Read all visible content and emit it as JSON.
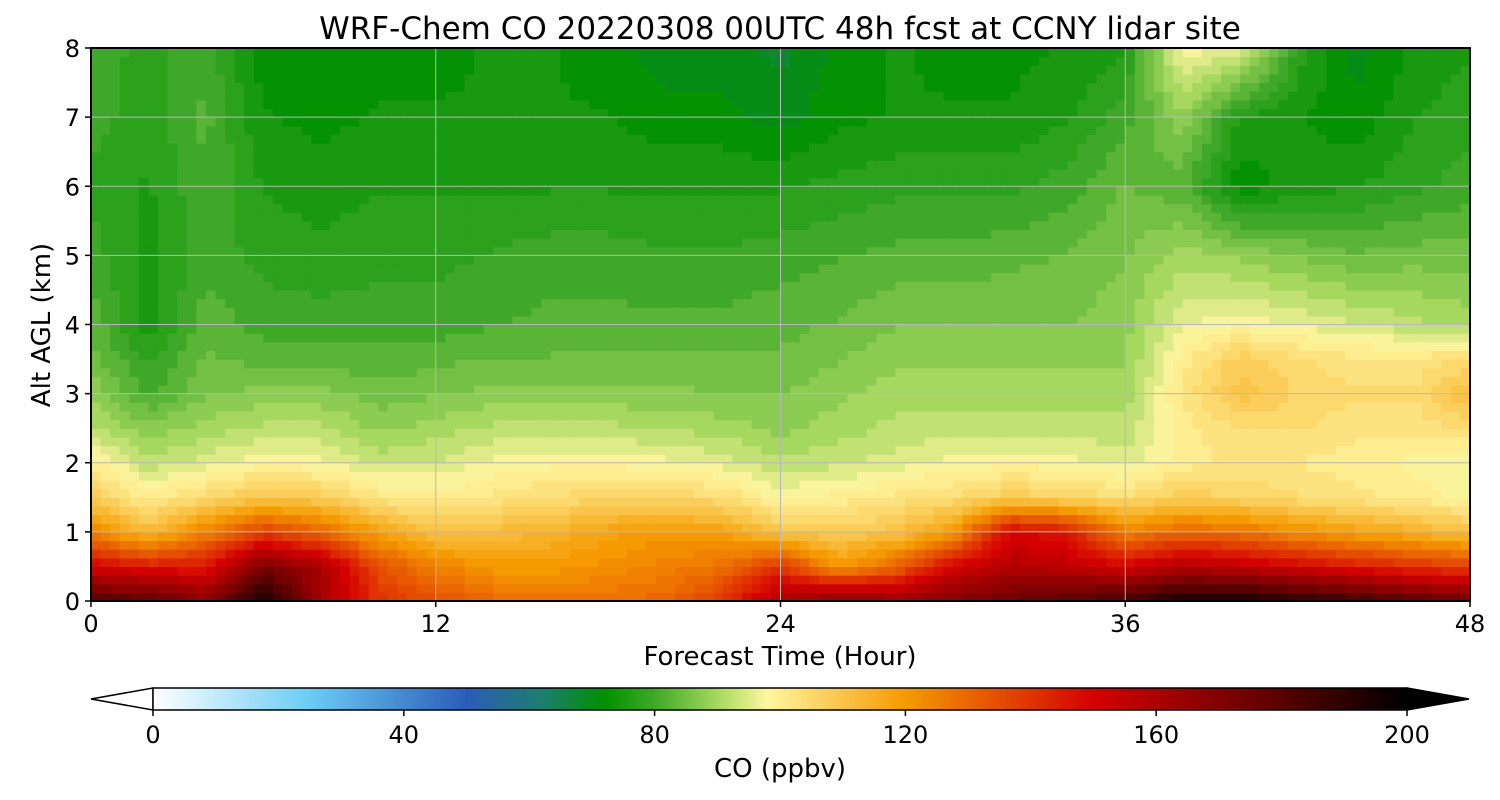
{
  "chart_data": {
    "type": "heatmap",
    "title": "WRF-Chem CO  20220308 00UTC 48h fcst at CCNY lidar site",
    "xlabel": "Forecast Time (Hour)",
    "ylabel": "Alt AGL (km)",
    "xlim": [
      0,
      48
    ],
    "ylim": [
      0,
      8
    ],
    "x_ticks": [
      0,
      12,
      24,
      36,
      48
    ],
    "y_ticks": [
      0,
      1,
      2,
      3,
      4,
      5,
      6,
      7,
      8
    ],
    "grid": true,
    "x": [
      0,
      2,
      4,
      6,
      8,
      10,
      12,
      14,
      16,
      18,
      20,
      22,
      24,
      26,
      28,
      30,
      32,
      34,
      36,
      38,
      40,
      42,
      44,
      46,
      48
    ],
    "y": [
      0,
      0.5,
      1,
      1.5,
      2,
      2.5,
      3,
      3.5,
      4,
      5,
      6,
      7,
      8
    ],
    "z": [
      [
        182,
        180,
        168,
        196,
        162,
        140,
        135,
        130,
        128,
        128,
        130,
        140,
        160,
        170,
        165,
        170,
        175,
        180,
        185,
        195,
        195,
        190,
        185,
        180,
        175
      ],
      [
        150,
        145,
        145,
        172,
        160,
        135,
        125,
        120,
        120,
        122,
        125,
        128,
        140,
        120,
        130,
        150,
        158,
        155,
        150,
        158,
        155,
        150,
        145,
        140,
        138
      ],
      [
        125,
        112,
        125,
        138,
        130,
        118,
        110,
        112,
        114,
        118,
        120,
        118,
        110,
        108,
        110,
        120,
        150,
        145,
        125,
        130,
        128,
        122,
        118,
        115,
        110
      ],
      [
        108,
        100,
        105,
        110,
        108,
        102,
        100,
        102,
        104,
        106,
        106,
        104,
        98,
        100,
        102,
        104,
        108,
        106,
        104,
        108,
        106,
        104,
        102,
        100,
        98
      ],
      [
        100,
        92,
        95,
        98,
        97,
        93,
        94,
        97,
        98,
        98,
        97,
        95,
        92,
        93,
        95,
        97,
        98,
        97,
        95,
        100,
        102,
        101,
        100,
        98,
        96
      ],
      [
        92,
        87,
        90,
        92,
        92,
        88,
        90,
        92,
        92,
        92,
        91,
        90,
        88,
        90,
        92,
        93,
        93,
        93,
        92,
        100,
        104,
        104,
        102,
        102,
        104
      ],
      [
        88,
        81,
        86,
        87,
        87,
        85,
        86,
        87,
        87,
        87,
        87,
        86,
        86,
        88,
        90,
        90,
        90,
        90,
        90,
        102,
        110,
        106,
        104,
        104,
        112
      ],
      [
        85,
        78,
        84,
        83,
        83,
        82,
        83,
        84,
        84,
        84,
        84,
        84,
        84,
        86,
        88,
        88,
        88,
        88,
        88,
        100,
        108,
        104,
        102,
        102,
        104
      ],
      [
        83,
        75,
        83,
        80,
        80,
        80,
        80,
        81,
        82,
        82,
        82,
        82,
        83,
        84,
        86,
        86,
        86,
        86,
        88,
        96,
        98,
        96,
        94,
        92,
        90
      ],
      [
        80,
        75,
        80,
        78,
        77,
        78,
        78,
        79,
        80,
        80,
        79,
        79,
        80,
        81,
        82,
        82,
        83,
        84,
        86,
        90,
        88,
        86,
        84,
        85,
        85
      ],
      [
        78,
        76,
        81,
        76,
        75,
        76,
        76,
        76,
        76,
        76,
        76,
        76,
        76,
        77,
        78,
        78,
        78,
        80,
        84,
        82,
        72,
        75,
        76,
        78,
        80
      ],
      [
        80,
        77,
        82,
        74,
        73,
        74,
        74,
        74,
        74,
        74,
        72,
        72,
        70,
        73,
        74,
        74,
        74,
        76,
        80,
        88,
        76,
        74,
        72,
        76,
        78
      ],
      [
        80,
        78,
        80,
        72,
        72,
        73,
        73,
        74,
        74,
        72,
        70,
        70,
        68,
        72,
        74,
        73,
        73,
        74,
        76,
        98,
        95,
        78,
        70,
        74,
        76
      ]
    ]
  },
  "colorbar": {
    "label": "CO  (ppbv)",
    "min": 0,
    "max": 200,
    "ticks": [
      0,
      40,
      80,
      120,
      160,
      200
    ],
    "extend": "both",
    "stops": [
      {
        "v": 0,
        "color": "#ffffff"
      },
      {
        "v": 25,
        "color": "#6ccbf3"
      },
      {
        "v": 50,
        "color": "#2c5cb8"
      },
      {
        "v": 62,
        "color": "#1e7d6e"
      },
      {
        "v": 72,
        "color": "#009000"
      },
      {
        "v": 80,
        "color": "#40a828"
      },
      {
        "v": 90,
        "color": "#a6d860"
      },
      {
        "v": 98,
        "color": "#fff6a0"
      },
      {
        "v": 120,
        "color": "#f59a00"
      },
      {
        "v": 150,
        "color": "#d40000"
      },
      {
        "v": 175,
        "color": "#6e0000"
      },
      {
        "v": 200,
        "color": "#000000"
      }
    ]
  }
}
